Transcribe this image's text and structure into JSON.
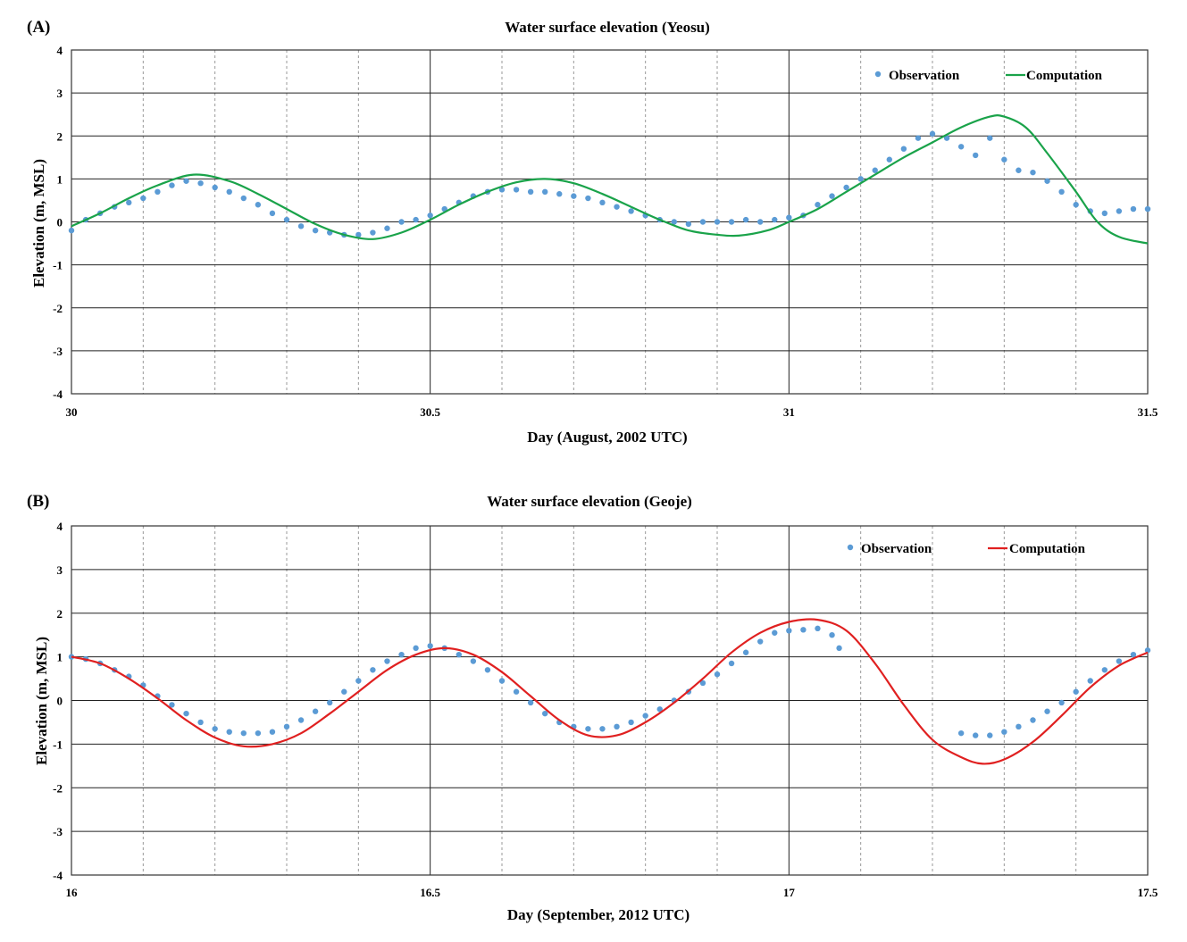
{
  "chart_data": [
    {
      "type": "line",
      "panel_label": "(A)",
      "title": "Water surface elevation (Yeosu)",
      "xlabel": "Day (August, 2002 UTC)",
      "ylabel": "Elevation (m, MSL)",
      "xlim": [
        30,
        31.5
      ],
      "ylim": [
        -4,
        4
      ],
      "xticks": [
        "30",
        "30.5",
        "31",
        "31.5"
      ],
      "yticks": [
        "-4",
        "-3",
        "-2",
        "-1",
        "0",
        "1",
        "2",
        "3",
        "4"
      ],
      "grid": "major solid, minor dashed vertical every 0.1 day",
      "legend_position": "top-right",
      "computation_color": "#1aa34a",
      "observation_color": "#5b9bd5",
      "series": [
        {
          "name": "Observation",
          "kind": "scatter",
          "x": [
            30.0,
            30.02,
            30.04,
            30.06,
            30.08,
            30.1,
            30.12,
            30.14,
            30.16,
            30.18,
            30.2,
            30.22,
            30.24,
            30.26,
            30.28,
            30.3,
            30.32,
            30.34,
            30.36,
            30.38,
            30.4,
            30.42,
            30.44,
            30.46,
            30.48,
            30.5,
            30.52,
            30.54,
            30.56,
            30.58,
            30.6,
            30.62,
            30.64,
            30.66,
            30.68,
            30.7,
            30.72,
            30.74,
            30.76,
            30.78,
            30.8,
            30.82,
            30.84,
            30.86,
            30.88,
            30.9,
            30.92,
            30.94,
            30.96,
            30.98,
            31.0,
            31.02,
            31.04,
            31.06,
            31.08,
            31.1,
            31.12,
            31.14,
            31.16,
            31.18,
            31.2,
            31.22,
            31.24,
            31.26,
            31.28,
            31.3,
            31.32,
            31.34,
            31.36,
            31.38,
            31.4,
            31.42,
            31.44,
            31.46,
            31.48,
            31.5
          ],
          "y": [
            -0.2,
            0.05,
            0.2,
            0.35,
            0.45,
            0.55,
            0.7,
            0.85,
            0.95,
            0.9,
            0.8,
            0.7,
            0.55,
            0.4,
            0.2,
            0.05,
            -0.1,
            -0.2,
            -0.25,
            -0.3,
            -0.3,
            -0.25,
            -0.15,
            0.0,
            0.05,
            0.15,
            0.3,
            0.45,
            0.6,
            0.7,
            0.75,
            0.75,
            0.7,
            0.7,
            0.65,
            0.6,
            0.55,
            0.45,
            0.35,
            0.25,
            0.15,
            0.05,
            0.0,
            -0.05,
            0.0,
            0.0,
            0.0,
            0.05,
            0.0,
            0.05,
            0.1,
            0.15,
            0.4,
            0.6,
            0.8,
            1.0,
            1.2,
            1.45,
            1.7,
            1.95,
            2.05,
            1.95,
            1.75,
            1.55,
            1.95,
            1.45,
            1.2,
            1.15,
            0.95,
            0.7,
            0.4,
            0.25,
            0.2,
            0.25,
            0.3,
            0.3
          ]
        },
        {
          "name": "Computation",
          "kind": "line",
          "x": [
            30.0,
            30.04,
            30.08,
            30.12,
            30.17,
            30.22,
            30.26,
            30.3,
            30.34,
            30.38,
            30.42,
            30.46,
            30.5,
            30.54,
            30.58,
            30.62,
            30.66,
            30.7,
            30.74,
            30.78,
            30.82,
            30.86,
            30.9,
            30.93,
            30.97,
            31.0,
            31.04,
            31.08,
            31.12,
            31.16,
            31.2,
            31.24,
            31.28,
            31.3,
            31.33,
            31.36,
            31.4,
            31.43,
            31.46,
            31.5
          ],
          "y": [
            -0.1,
            0.2,
            0.55,
            0.85,
            1.1,
            0.95,
            0.65,
            0.3,
            -0.05,
            -0.3,
            -0.4,
            -0.25,
            0.05,
            0.4,
            0.7,
            0.92,
            1.0,
            0.9,
            0.65,
            0.35,
            0.05,
            -0.2,
            -0.3,
            -0.32,
            -0.2,
            0.0,
            0.3,
            0.7,
            1.1,
            1.5,
            1.85,
            2.2,
            2.45,
            2.45,
            2.2,
            1.6,
            0.7,
            0.0,
            -0.35,
            -0.5
          ]
        }
      ]
    },
    {
      "type": "line",
      "panel_label": "(B)",
      "title": "Water surface elevation (Geoje)",
      "xlabel": "Day (September, 2012 UTC)",
      "ylabel": "Elevation (m, MSL)",
      "xlim": [
        16,
        17.5
      ],
      "ylim": [
        -4,
        4
      ],
      "xticks": [
        "16",
        "16.5",
        "17",
        "17.5"
      ],
      "yticks": [
        "-4",
        "-3",
        "-2",
        "-1",
        "0",
        "1",
        "2",
        "3",
        "4"
      ],
      "grid": "major solid, minor dashed vertical every 0.1 day",
      "legend_position": "top-right",
      "computation_color": "#e02020",
      "observation_color": "#5b9bd5",
      "series": [
        {
          "name": "Observation",
          "kind": "scatter",
          "x": [
            16.0,
            16.02,
            16.04,
            16.06,
            16.08,
            16.1,
            16.12,
            16.14,
            16.16,
            16.18,
            16.2,
            16.22,
            16.24,
            16.26,
            16.28,
            16.3,
            16.32,
            16.34,
            16.36,
            16.38,
            16.4,
            16.42,
            16.44,
            16.46,
            16.48,
            16.5,
            16.52,
            16.54,
            16.56,
            16.58,
            16.6,
            16.62,
            16.64,
            16.66,
            16.68,
            16.7,
            16.72,
            16.74,
            16.76,
            16.78,
            16.8,
            16.82,
            16.84,
            16.86,
            16.88,
            16.9,
            16.92,
            16.94,
            16.96,
            16.98,
            17.0,
            17.02,
            17.04,
            17.06,
            17.07,
            17.24,
            17.26,
            17.28,
            17.3,
            17.32,
            17.34,
            17.36,
            17.38,
            17.4,
            17.42,
            17.44,
            17.46,
            17.48,
            17.5
          ],
          "y": [
            1.0,
            0.95,
            0.85,
            0.7,
            0.55,
            0.35,
            0.1,
            -0.1,
            -0.3,
            -0.5,
            -0.65,
            -0.72,
            -0.75,
            -0.75,
            -0.72,
            -0.6,
            -0.45,
            -0.25,
            -0.05,
            0.2,
            0.45,
            0.7,
            0.9,
            1.05,
            1.2,
            1.25,
            1.2,
            1.05,
            0.9,
            0.7,
            0.45,
            0.2,
            -0.05,
            -0.3,
            -0.5,
            -0.6,
            -0.65,
            -0.65,
            -0.6,
            -0.5,
            -0.35,
            -0.2,
            0.0,
            0.2,
            0.4,
            0.6,
            0.85,
            1.1,
            1.35,
            1.55,
            1.6,
            1.62,
            1.65,
            1.5,
            1.2,
            -0.75,
            -0.8,
            -0.8,
            -0.72,
            -0.6,
            -0.45,
            -0.25,
            -0.05,
            0.2,
            0.45,
            0.7,
            0.9,
            1.05,
            1.15
          ]
        },
        {
          "name": "Computation",
          "kind": "line",
          "x": [
            16.0,
            16.04,
            16.08,
            16.12,
            16.16,
            16.2,
            16.24,
            16.28,
            16.32,
            16.36,
            16.4,
            16.44,
            16.48,
            16.52,
            16.56,
            16.6,
            16.64,
            16.68,
            16.72,
            16.76,
            16.8,
            16.84,
            16.88,
            16.92,
            16.96,
            17.0,
            17.04,
            17.08,
            17.12,
            17.16,
            17.2,
            17.24,
            17.27,
            17.3,
            17.34,
            17.38,
            17.42,
            17.46,
            17.5
          ],
          "y": [
            1.0,
            0.85,
            0.5,
            0.05,
            -0.45,
            -0.85,
            -1.05,
            -1.0,
            -0.75,
            -0.3,
            0.2,
            0.7,
            1.05,
            1.2,
            1.05,
            0.65,
            0.1,
            -0.45,
            -0.8,
            -0.8,
            -0.5,
            -0.05,
            0.5,
            1.1,
            1.55,
            1.8,
            1.85,
            1.6,
            0.85,
            -0.1,
            -0.9,
            -1.3,
            -1.45,
            -1.35,
            -0.95,
            -0.35,
            0.3,
            0.8,
            1.1
          ]
        }
      ]
    }
  ]
}
